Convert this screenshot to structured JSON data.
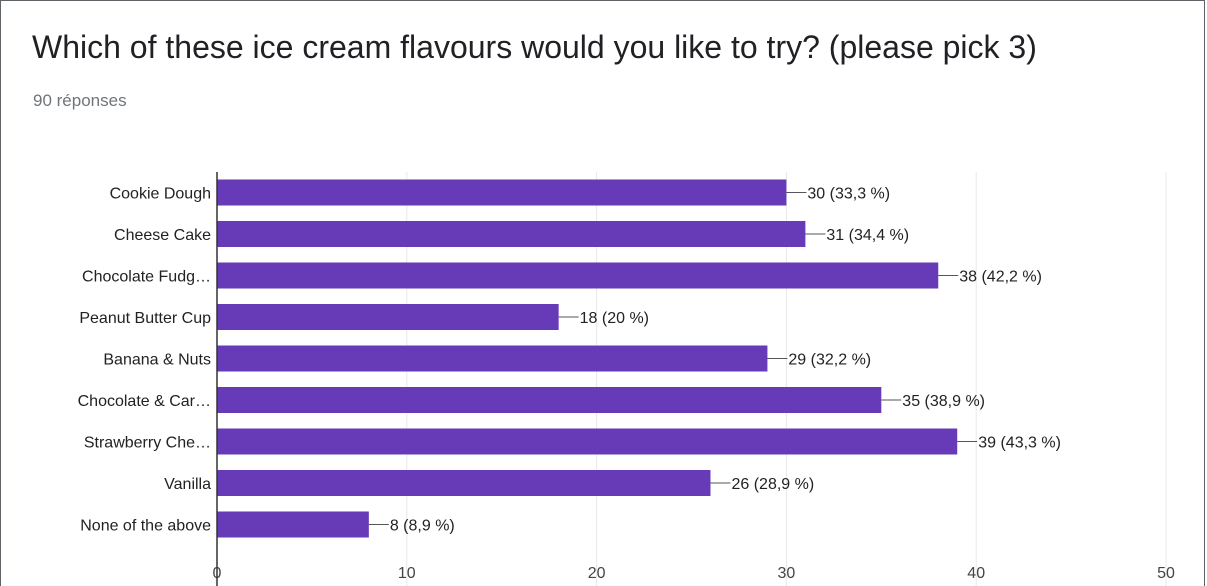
{
  "header": {
    "question": "Which of these ice cream flavours would you like to try? (please pick 3)",
    "responses": "90 réponses"
  },
  "colors": {
    "bar": "#673ab7",
    "grid": "#e8e8e8",
    "axis": "#333333"
  },
  "chart_data": {
    "type": "bar",
    "orientation": "horizontal",
    "categories": [
      "Cookie Dough",
      "Cheese Cake",
      "Chocolate Fudg…",
      "Peanut Butter Cup",
      "Banana & Nuts",
      "Chocolate & Car…",
      "Strawberry Che…",
      "Vanilla",
      "None of the above"
    ],
    "values": [
      30,
      31,
      38,
      18,
      29,
      35,
      39,
      26,
      8
    ],
    "data_labels": [
      "30 (33,3 %)",
      "31 (34,4 %)",
      "38 (42,2 %)",
      "18 (20 %)",
      "29 (32,2 %)",
      "35 (38,9 %)",
      "39 (43,3 %)",
      "26 (28,9 %)",
      "8 (8,9 %)"
    ],
    "xlim": [
      0,
      50
    ],
    "xticks": [
      "0",
      "10",
      "20",
      "30",
      "40",
      "50"
    ],
    "grid": true
  }
}
